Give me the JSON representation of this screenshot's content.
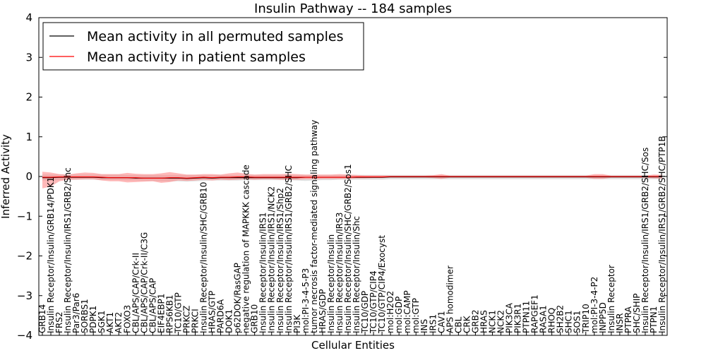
{
  "chart_data": {
    "type": "line",
    "title": "Insulin Pathway -- 184 samples",
    "xlabel": "Cellular Entities",
    "ylabel": "Inferred Activity",
    "ylim": [
      -4,
      4
    ],
    "yticks": [
      -4,
      -3,
      -2,
      -1,
      0,
      1,
      2,
      3,
      4
    ],
    "ytick_labels": [
      "−4",
      "−3",
      "−2",
      "−1",
      "0",
      "1",
      "2",
      "3",
      "4"
    ],
    "legend_position": "top-left",
    "categories": [
      "GRB14",
      "Insulin Receptor/Insulin/GRB14/PDK1",
      "FRS2",
      "Insulin Receptor/Insulin/IRS1/GRB2/Shc",
      "Par3/Par6",
      "SORBS1",
      "PDPK1",
      "SGK1",
      "AKT1",
      "AKT2",
      "FOXO3",
      "CBL/APS/CAP/Crk-II",
      "CBL/APS/CAP/Crk-II/C3G",
      "CBL/APS/CAP",
      "EIF4EBP1",
      "RPS6KB1",
      "TC10/GTP",
      "PRKCZ",
      "PRKCI",
      "Insulin Receptor/Insulin/SHC/GRB10",
      "HRAS/GTP",
      "PARD6A",
      "DOK1",
      "p62DOK/RasGAP",
      "negative regulation of MAPKKK cascade",
      "GRB10",
      "Insulin Receptor/Insulin/IRS1",
      "Insulin Receptor/Insulin/IRS1/NCK2",
      "Insulin Receptor/Insulin/IRS1/Shp2",
      "Insulin Receptor/Insulin/IRS1/GRB2/SHC",
      "PI3K",
      "mol:PI-3-4-5-P3",
      "tumor necrosis factor-mediated signaling pathway",
      "HRAS/GDP",
      "Insulin Receptor/Insulin",
      "Insulin Receptor/Insulin/IRS3",
      "Insulin Receptor/Insulin/SHC/GRB2/Sos1",
      "Insulin Receptor/Insulin/Shc",
      "TC10/GDP",
      "TC10/GTP/CIP4",
      "TC10/GTP/CIP4/Exocyst",
      "mol:H2O2",
      "mol:GDP",
      "mol:CAMP",
      "mol:GTP",
      "INS",
      "IRS1",
      "CAV1",
      "APS homodimer",
      "CBL",
      "CRK",
      "GRB2",
      "HRAS",
      "NCK1",
      "NCK2",
      "PIK3CA",
      "PIK3R1",
      "PTPN11",
      "RAPGEF1",
      "RASA1",
      "RHOQ",
      "SH2B2",
      "SHC1",
      "SOS1",
      "TRIP10",
      "mol:PI-3-4-P2",
      "INPP5D",
      "Insulin Receptor",
      "INSR",
      "PTPRA",
      "SHC/SHIP",
      "Insulin Receptor/Insulin/IRS1/GRB2/SHC/Sos",
      "PTPN1",
      "Insulin Receptor/Insulin/IRS1/GRB2/SHC/PTP1B"
    ],
    "series": [
      {
        "name": "Mean activity in all permuted samples",
        "color": "#000000",
        "band_color": "#cccccc",
        "values": [
          -0.03,
          -0.03,
          -0.02,
          -0.02,
          -0.02,
          -0.02,
          -0.02,
          -0.03,
          -0.03,
          -0.03,
          -0.03,
          -0.04,
          -0.04,
          -0.04,
          -0.04,
          -0.04,
          -0.04,
          -0.05,
          -0.04,
          -0.03,
          -0.04,
          -0.03,
          -0.03,
          -0.03,
          -0.03,
          -0.03,
          -0.03,
          -0.03,
          -0.03,
          -0.03,
          -0.03,
          -0.02,
          -0.02,
          -0.02,
          -0.02,
          -0.02,
          -0.02,
          -0.02,
          -0.02,
          -0.02,
          -0.02,
          -0.01,
          -0.01,
          -0.01,
          -0.01,
          -0.01,
          -0.01,
          -0.01,
          -0.01,
          -0.01,
          -0.01,
          -0.01,
          -0.01,
          -0.01,
          -0.01,
          -0.01,
          -0.01,
          -0.01,
          -0.01,
          -0.01,
          -0.01,
          -0.01,
          -0.01,
          -0.01,
          -0.01,
          -0.01,
          -0.01,
          -0.01,
          -0.01,
          -0.01,
          -0.01,
          -0.01,
          -0.01,
          -0.01
        ],
        "band_upper": [
          0.05,
          0.05,
          0.05,
          0.05,
          0.05,
          0.05,
          0.05,
          0.05,
          0.05,
          0.05,
          0.04,
          0.04,
          0.04,
          0.04,
          0.04,
          0.04,
          0.04,
          0.04,
          0.04,
          0.04,
          0.04,
          0.04,
          0.04,
          0.04,
          0.04,
          0.04,
          0.04,
          0.04,
          0.04,
          0.04,
          0.04,
          0.04,
          0.04,
          0.04,
          0.04,
          0.04,
          0.04,
          0.04,
          0.04,
          0.04,
          0.04,
          0.04,
          0.04,
          0.04,
          0.04,
          0.04,
          0.04,
          0.04,
          0.04,
          0.04,
          0.04,
          0.04,
          0.04,
          0.04,
          0.04,
          0.04,
          0.04,
          0.04,
          0.04,
          0.04,
          0.04,
          0.04,
          0.04,
          0.04,
          0.04,
          0.04,
          0.04,
          0.04,
          0.04,
          0.04,
          0.04,
          0.04,
          0.04,
          0.04
        ],
        "band_lower": [
          -0.1,
          -0.1,
          -0.09,
          -0.08,
          -0.08,
          -0.08,
          -0.08,
          -0.09,
          -0.09,
          -0.09,
          -0.1,
          -0.1,
          -0.11,
          -0.11,
          -0.12,
          -0.12,
          -0.12,
          -0.13,
          -0.12,
          -0.11,
          -0.1,
          -0.1,
          -0.1,
          -0.1,
          -0.09,
          -0.09,
          -0.09,
          -0.09,
          -0.09,
          -0.09,
          -0.1,
          -0.11,
          -0.1,
          -0.09,
          -0.09,
          -0.08,
          -0.08,
          -0.08,
          -0.08,
          -0.08,
          -0.08,
          -0.07,
          -0.07,
          -0.07,
          -0.07,
          -0.07,
          -0.07,
          -0.07,
          -0.07,
          -0.07,
          -0.07,
          -0.07,
          -0.07,
          -0.07,
          -0.07,
          -0.07,
          -0.07,
          -0.07,
          -0.07,
          -0.07,
          -0.07,
          -0.07,
          -0.07,
          -0.07,
          -0.07,
          -0.07,
          -0.07,
          -0.07,
          -0.07,
          -0.07,
          -0.07,
          -0.07,
          -0.07,
          -0.07
        ]
      },
      {
        "name": "Mean activity in patient samples",
        "color": "#ff0000",
        "band_color": "#ff8080",
        "values": [
          -0.02,
          -0.02,
          -0.01,
          -0.01,
          -0.01,
          -0.01,
          -0.01,
          -0.02,
          -0.03,
          -0.03,
          -0.03,
          -0.03,
          -0.04,
          -0.04,
          -0.04,
          -0.03,
          -0.03,
          -0.04,
          -0.03,
          -0.02,
          -0.03,
          -0.02,
          -0.02,
          -0.01,
          -0.01,
          -0.02,
          -0.02,
          -0.02,
          -0.02,
          -0.02,
          -0.02,
          -0.02,
          -0.02,
          -0.02,
          -0.02,
          -0.02,
          -0.02,
          -0.01,
          -0.01,
          -0.01,
          -0.01,
          0,
          0,
          0,
          0,
          0,
          0,
          0,
          0,
          0,
          0,
          0,
          0,
          0,
          0,
          0,
          0,
          0,
          0,
          0,
          0,
          0,
          0,
          0,
          0,
          0,
          0,
          0,
          0,
          0,
          0,
          0,
          0,
          0
        ],
        "band_upper": [
          0.12,
          0.1,
          0.06,
          0.05,
          0.08,
          0.1,
          0.09,
          0.06,
          0.06,
          0.06,
          0.09,
          0.07,
          0.06,
          0.06,
          0.08,
          0.11,
          0.08,
          0.05,
          0.05,
          0.06,
          0.06,
          0.05,
          0.08,
          0.1,
          0.07,
          0.05,
          0.06,
          0.06,
          0.06,
          0.07,
          0.06,
          0.05,
          0.05,
          0.05,
          0.05,
          0.06,
          0.05,
          0.04,
          0.03,
          0.03,
          0.03,
          0.02,
          0.02,
          0.02,
          0.02,
          0.02,
          0.03,
          0.06,
          0.02,
          0.02,
          0.02,
          0.02,
          0.02,
          0.02,
          0.02,
          0.02,
          0.02,
          0.02,
          0.02,
          0.02,
          0.02,
          0.02,
          0.02,
          0.02,
          0.02,
          0.06,
          0.06,
          0.02,
          0.02,
          0.02,
          0.02,
          0.02,
          0.05,
          0.04
        ],
        "band_lower": [
          -0.3,
          -0.25,
          -0.12,
          -0.08,
          -0.08,
          -0.07,
          -0.07,
          -0.1,
          -0.12,
          -0.12,
          -0.15,
          -0.14,
          -0.13,
          -0.12,
          -0.16,
          -0.14,
          -0.1,
          -0.11,
          -0.1,
          -0.08,
          -0.1,
          -0.08,
          -0.09,
          -0.08,
          -0.07,
          -0.08,
          -0.07,
          -0.07,
          -0.08,
          -0.08,
          -0.08,
          -0.07,
          -0.07,
          -0.06,
          -0.06,
          -0.06,
          -0.06,
          -0.05,
          -0.05,
          -0.04,
          -0.04,
          -0.03,
          -0.03,
          -0.03,
          -0.03,
          -0.03,
          -0.04,
          -0.06,
          -0.03,
          -0.03,
          -0.03,
          -0.03,
          -0.03,
          -0.03,
          -0.03,
          -0.03,
          -0.03,
          -0.03,
          -0.03,
          -0.03,
          -0.03,
          -0.03,
          -0.03,
          -0.03,
          -0.03,
          -0.06,
          -0.06,
          -0.03,
          -0.03,
          -0.03,
          -0.03,
          -0.03,
          -0.05,
          -0.05
        ]
      }
    ]
  }
}
